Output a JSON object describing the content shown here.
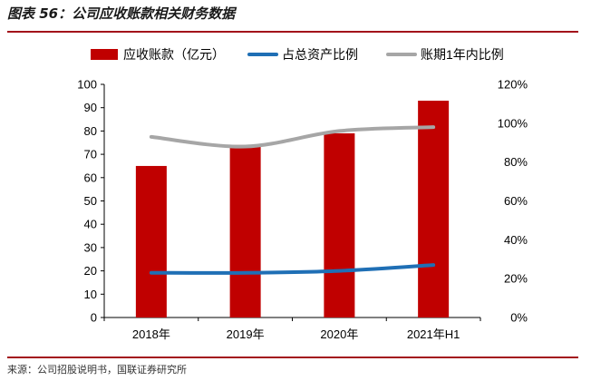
{
  "title": "图表 56：公司应收账款相关财务数据",
  "source": "来源：公司招股说明书，国联证券研究所",
  "colors": {
    "bar": "#c00000",
    "line1": "#1f6fb5",
    "line2": "#a6a6a6",
    "accent": "#a3121b"
  },
  "chart_data": {
    "type": "bar",
    "categories": [
      "2018年",
      "2019年",
      "2020年",
      "2021年H1"
    ],
    "series": [
      {
        "name": "应收账款（亿元）",
        "type": "bar",
        "axis": "left",
        "values": [
          65,
          74,
          79,
          93
        ]
      },
      {
        "name": "占总资产比例",
        "type": "line",
        "axis": "right",
        "values": [
          0.23,
          0.23,
          0.24,
          0.27
        ]
      },
      {
        "name": "账期1年内比例",
        "type": "line",
        "axis": "right",
        "values": [
          0.93,
          0.88,
          0.96,
          0.98
        ]
      }
    ],
    "y_left": {
      "min": 0,
      "max": 100,
      "ticks": [
        0,
        10,
        20,
        30,
        40,
        50,
        60,
        70,
        80,
        90,
        100
      ]
    },
    "y_right": {
      "min": 0,
      "max": 1.2,
      "ticks": [
        "0%",
        "20%",
        "40%",
        "60%",
        "80%",
        "100%",
        "120%"
      ]
    },
    "legend_position": "top",
    "grid": false
  }
}
